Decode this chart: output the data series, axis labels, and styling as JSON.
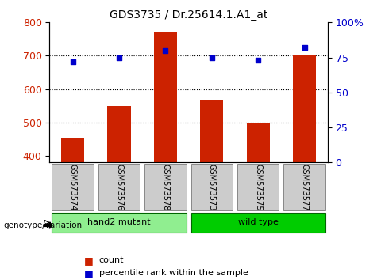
{
  "title": "GDS3735 / Dr.25614.1.A1_at",
  "samples": [
    "GSM573574",
    "GSM573576",
    "GSM573578",
    "GSM573573",
    "GSM573575",
    "GSM573577"
  ],
  "counts": [
    455,
    549,
    770,
    568,
    497,
    700
  ],
  "percentile_ranks": [
    72,
    75,
    80,
    75,
    73,
    82
  ],
  "groups": [
    {
      "label": "hand2 mutant",
      "indices": [
        0,
        1,
        2
      ],
      "color": "#90ee90"
    },
    {
      "label": "wild type",
      "indices": [
        3,
        4,
        5
      ],
      "color": "#00cc00"
    }
  ],
  "ylim_left": [
    380,
    800
  ],
  "ylim_right": [
    0,
    100
  ],
  "yticks_left": [
    400,
    500,
    600,
    700,
    800
  ],
  "yticks_right": [
    0,
    25,
    50,
    75,
    100
  ],
  "bar_color": "#cc2200",
  "dot_color": "#0000cc",
  "grid_color": "#000000",
  "bg_color": "#ffffff",
  "label_bg_color": "#cccccc",
  "legend_count_color": "#cc2200",
  "legend_dot_color": "#0000cc",
  "xlabel_rotation": 270,
  "genotype_label": "genotype/variation",
  "right_ytick_labels": [
    "0",
    "25",
    "50",
    "75",
    "100%"
  ]
}
